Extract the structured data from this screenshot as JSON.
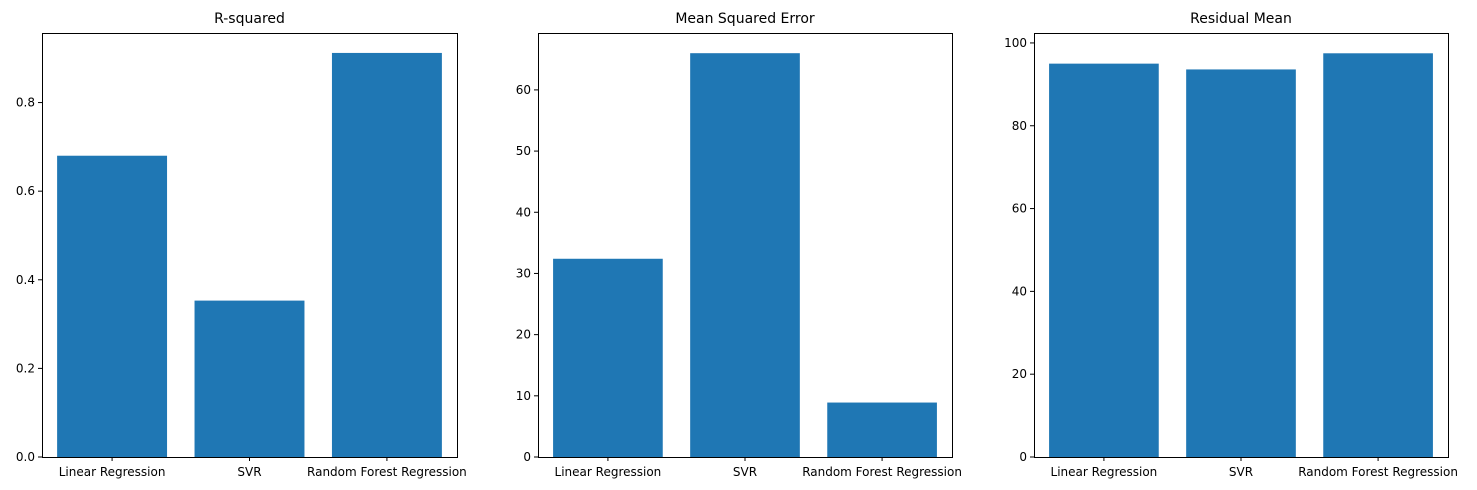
{
  "chart_data": [
    {
      "type": "bar",
      "title": "R-squared",
      "categories": [
        "Linear Regression",
        "SVR",
        "Random Forest Regression"
      ],
      "values": [
        0.68,
        0.353,
        0.912
      ],
      "ylim": [
        0,
        0.957
      ],
      "yticks": [
        0.0,
        0.2,
        0.4,
        0.6,
        0.8
      ],
      "ytick_labels": [
        "0.0",
        "0.2",
        "0.4",
        "0.6",
        "0.8"
      ],
      "color": "#1f77b4",
      "xlabel": "",
      "ylabel": ""
    },
    {
      "type": "bar",
      "title": "Mean Squared Error",
      "categories": [
        "Linear Regression",
        "SVR",
        "Random Forest Regression"
      ],
      "values": [
        32.4,
        66.0,
        8.9
      ],
      "ylim": [
        0,
        69.3
      ],
      "yticks": [
        0,
        10,
        20,
        30,
        40,
        50,
        60
      ],
      "ytick_labels": [
        "0",
        "10",
        "20",
        "30",
        "40",
        "50",
        "60"
      ],
      "color": "#1f77b4",
      "xlabel": "",
      "ylabel": ""
    },
    {
      "type": "bar",
      "title": "Residual Mean",
      "categories": [
        "Linear Regression",
        "SVR",
        "Random Forest Regression"
      ],
      "values": [
        95.0,
        93.6,
        97.5
      ],
      "ylim": [
        0,
        102.4
      ],
      "yticks": [
        0,
        20,
        40,
        60,
        80,
        100
      ],
      "ytick_labels": [
        "0",
        "20",
        "40",
        "60",
        "80",
        "100"
      ],
      "color": "#1f77b4",
      "xlabel": "",
      "ylabel": ""
    }
  ]
}
